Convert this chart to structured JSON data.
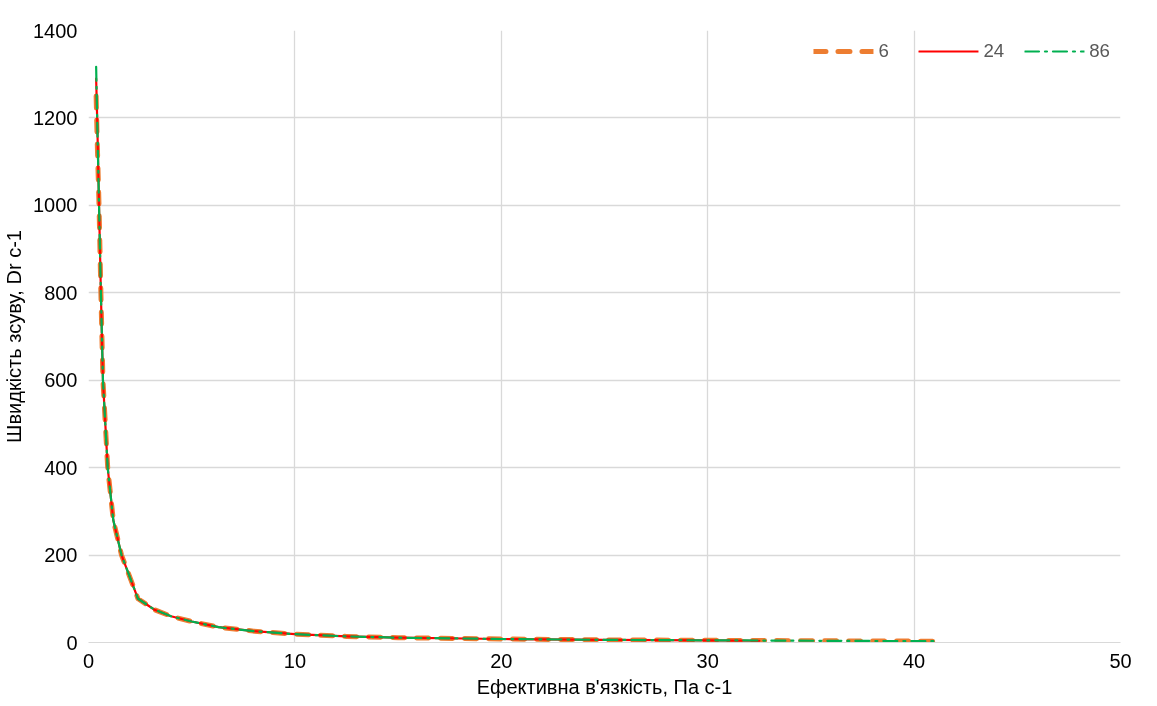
{
  "chart_data": {
    "type": "line",
    "xlabel": "Ефективна в'язкість, Па с-1",
    "ylabel": "Швидкість зсуву, Dr c-1",
    "xlim": [
      0,
      50
    ],
    "xticks": [
      0,
      10,
      20,
      30,
      40,
      50
    ],
    "ylim": [
      0,
      1400
    ],
    "yticks": [
      0,
      200,
      400,
      600,
      800,
      1000,
      1200,
      1400
    ],
    "grid": true,
    "legend": "top right",
    "marker": "none",
    "series": [
      {
        "name": "6",
        "color": "#ed7d31",
        "line_style": "dashed",
        "x": [
          0.37,
          0.42,
          0.51,
          0.6,
          0.7,
          0.93,
          1.2,
          1.6,
          2.4,
          3.2,
          4,
          5,
          6.3,
          8,
          10,
          12.5,
          15,
          20,
          25,
          30,
          35,
          41
        ],
        "values": [
          1250,
          1150,
          1000,
          800,
          600,
          400,
          280,
          200,
          100,
          75,
          60,
          48,
          35,
          26,
          19,
          14,
          11,
          8,
          6,
          5,
          4,
          3
        ]
      },
      {
        "name": "24",
        "color": "#ff0000",
        "line_style": "solid",
        "x": [
          0.37,
          0.42,
          0.51,
          0.6,
          0.7,
          0.93,
          1.2,
          1.6,
          2.4,
          3.2,
          4,
          5,
          6.3,
          8,
          10,
          12.5,
          15,
          20,
          25,
          30,
          32.5
        ],
        "values": [
          1290,
          1200,
          1000,
          800,
          600,
          400,
          280,
          200,
          100,
          75,
          60,
          48,
          35,
          26,
          19,
          14,
          11,
          8,
          6,
          5,
          4
        ]
      },
      {
        "name": "86",
        "color": "#00b050",
        "line_style": "dashdot",
        "x": [
          0.37,
          0.42,
          0.51,
          0.6,
          0.7,
          0.93,
          1.2,
          1.6,
          2.4,
          3.2,
          4,
          5,
          6.3,
          8,
          10,
          12.5,
          15,
          20,
          25,
          30,
          35,
          41
        ],
        "values": [
          1317,
          1200,
          1000,
          800,
          600,
          400,
          280,
          200,
          100,
          75,
          60,
          48,
          35,
          26,
          19,
          14,
          11,
          8,
          6,
          5,
          4,
          3
        ]
      }
    ]
  }
}
